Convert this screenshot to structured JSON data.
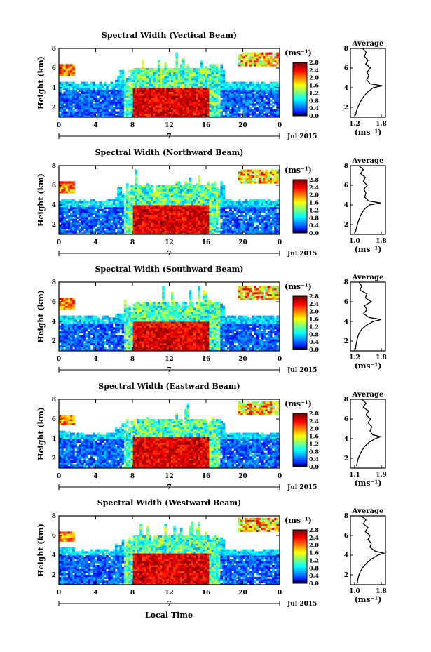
{
  "figure": {
    "xlabel": "Local Time",
    "date_left": "7",
    "date_right": "Jul 2015"
  },
  "chart_data": [
    {
      "type": "heatmap",
      "title": "Spectral Width (Vertical Beam)",
      "ylabel": "Height (km)",
      "xlim": [
        0,
        24
      ],
      "ylim": [
        1,
        8
      ],
      "xticks": [
        "0",
        "4",
        "8",
        "12",
        "16",
        "20",
        "0"
      ],
      "yticks": [
        "2",
        "4",
        "6",
        "8"
      ],
      "colorbar_label": "(ms⁻¹)",
      "colorbar_ticks": [
        "0.0",
        "0.4",
        "0.8",
        "1.2",
        "1.6",
        "2.0",
        "2.4",
        "2.8"
      ],
      "inset": {
        "title": "Average",
        "xlabel": "(ms⁻¹)",
        "xticks": [
          "1.2",
          "1.8"
        ],
        "yticks": [
          "2",
          "4",
          "6",
          "8"
        ],
        "height": [
          1.2,
          1.6,
          2.0,
          2.4,
          2.8,
          3.2,
          3.6,
          4.0,
          4.2,
          4.4,
          4.8,
          5.2,
          5.6,
          6.0,
          6.4,
          6.8,
          7.2,
          7.6,
          8.0
        ],
        "value": [
          1.22,
          1.24,
          1.27,
          1.31,
          1.36,
          1.42,
          1.5,
          1.62,
          1.82,
          1.55,
          1.47,
          1.52,
          1.48,
          1.56,
          1.45,
          1.5,
          1.42,
          1.46,
          1.38
        ]
      }
    },
    {
      "type": "heatmap",
      "title": "Spectral Width (Northward Beam)",
      "ylabel": "Height (km)",
      "xlim": [
        0,
        24
      ],
      "ylim": [
        1,
        8
      ],
      "xticks": [
        "0",
        "4",
        "8",
        "12",
        "16",
        "20",
        "0"
      ],
      "yticks": [
        "2",
        "4",
        "6",
        "8"
      ],
      "colorbar_label": "(ms⁻¹)",
      "colorbar_ticks": [
        "0.0",
        "0.4",
        "0.8",
        "1.2",
        "1.6",
        "2.0",
        "2.4",
        "2.8"
      ],
      "inset": {
        "title": "Average",
        "xlabel": "(ms⁻¹)",
        "xticks": [
          "1.0",
          "1.8"
        ],
        "yticks": [
          "2",
          "4",
          "6",
          "8"
        ],
        "height": [
          1.2,
          1.6,
          2.0,
          2.4,
          2.8,
          3.2,
          3.6,
          4.0,
          4.2,
          4.4,
          4.8,
          5.2,
          5.6,
          6.0,
          6.4,
          6.8,
          7.2,
          7.6,
          8.0
        ],
        "value": [
          1.02,
          1.05,
          1.08,
          1.12,
          1.16,
          1.22,
          1.3,
          1.45,
          1.78,
          1.42,
          1.3,
          1.34,
          1.28,
          1.38,
          1.26,
          1.32,
          1.18,
          1.26,
          1.12
        ]
      }
    },
    {
      "type": "heatmap",
      "title": "Spectral Width (Southward Beam)",
      "ylabel": "Height (km)",
      "xlim": [
        0,
        24
      ],
      "ylim": [
        1,
        8
      ],
      "xticks": [
        "0",
        "4",
        "8",
        "12",
        "16",
        "20",
        "0"
      ],
      "yticks": [
        "2",
        "4",
        "6",
        "8"
      ],
      "colorbar_label": "(ms⁻¹)",
      "colorbar_ticks": [
        "0.0",
        "0.4",
        "0.8",
        "1.2",
        "1.6",
        "2.0",
        "2.4",
        "2.8"
      ],
      "inset": {
        "title": "Average",
        "xlabel": "(ms⁻¹)",
        "xticks": [
          "1.2",
          "1.8"
        ],
        "yticks": [
          "2",
          "4",
          "6",
          "8"
        ],
        "height": [
          1.2,
          1.6,
          2.0,
          2.4,
          2.8,
          3.2,
          3.6,
          4.0,
          4.2,
          4.4,
          4.8,
          5.2,
          5.6,
          6.0,
          6.4,
          6.8,
          7.2,
          7.6,
          8.0
        ],
        "value": [
          1.22,
          1.23,
          1.25,
          1.27,
          1.3,
          1.36,
          1.46,
          1.62,
          1.8,
          1.52,
          1.4,
          1.48,
          1.42,
          1.58,
          1.44,
          1.48,
          1.32,
          1.36,
          1.3
        ]
      }
    },
    {
      "type": "heatmap",
      "title": "Spectral Width (Eastward Beam)",
      "ylabel": "Height (km)",
      "xlim": [
        0,
        24
      ],
      "ylim": [
        1,
        8
      ],
      "xticks": [
        "0",
        "4",
        "8",
        "12",
        "16",
        "20",
        "0"
      ],
      "yticks": [
        "2",
        "4",
        "6",
        "8"
      ],
      "colorbar_label": "(ms⁻¹)",
      "colorbar_ticks": [
        "0.0",
        "0.4",
        "0.8",
        "1.2",
        "1.6",
        "2.0",
        "2.4",
        "2.8"
      ],
      "inset": {
        "title": "Average",
        "xlabel": "(ms⁻¹)",
        "xticks": [
          "1.1",
          "1.9"
        ],
        "yticks": [
          "2",
          "4",
          "6",
          "8"
        ],
        "height": [
          1.2,
          1.6,
          2.0,
          2.4,
          2.8,
          3.2,
          3.6,
          4.0,
          4.2,
          4.4,
          4.8,
          5.2,
          5.6,
          6.0,
          6.4,
          6.8,
          7.2,
          7.6,
          8.0
        ],
        "value": [
          1.16,
          1.18,
          1.21,
          1.26,
          1.32,
          1.4,
          1.52,
          1.72,
          1.88,
          1.64,
          1.56,
          1.62,
          1.5,
          1.58,
          1.44,
          1.52,
          1.36,
          1.44,
          1.32
        ]
      }
    },
    {
      "type": "heatmap",
      "title": "Spectral Width (Westward Beam)",
      "ylabel": "Height (km)",
      "xlim": [
        0,
        24
      ],
      "ylim": [
        1,
        8
      ],
      "xticks": [
        "0",
        "4",
        "8",
        "12",
        "16",
        "20",
        "0"
      ],
      "yticks": [
        "2",
        "4",
        "6",
        "8"
      ],
      "colorbar_label": "(ms⁻¹)",
      "colorbar_ticks": [
        "0.0",
        "0.4",
        "0.8",
        "1.2",
        "1.6",
        "2.0",
        "2.4",
        "2.8"
      ],
      "inset": {
        "title": "Average",
        "xlabel": "(ms⁻¹)",
        "xticks": [
          "1.0",
          "1.8"
        ],
        "yticks": [
          "2",
          "4",
          "6",
          "8"
        ],
        "height": [
          1.2,
          1.6,
          2.0,
          2.4,
          2.8,
          3.2,
          3.6,
          4.0,
          4.2,
          4.4,
          4.8,
          5.2,
          5.6,
          6.0,
          6.4,
          6.8,
          7.2,
          7.6,
          8.0
        ],
        "value": [
          1.08,
          1.1,
          1.13,
          1.18,
          1.26,
          1.36,
          1.5,
          1.7,
          1.88,
          1.62,
          1.46,
          1.5,
          1.4,
          1.46,
          1.32,
          1.4,
          1.26,
          1.34,
          1.2
        ]
      }
    }
  ]
}
